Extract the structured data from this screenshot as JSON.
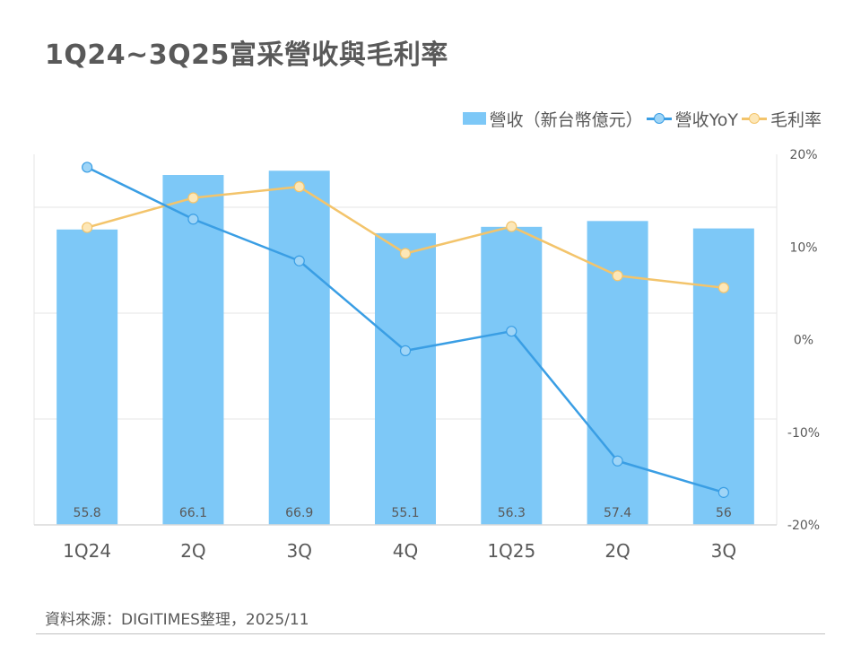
{
  "title": "1Q24~3Q25富采營收與毛利率",
  "source": "資料來源：DIGITIMES整理，2025/11",
  "legend": {
    "revenue": "營收（新台幣億元）",
    "yoy": "營收YoY",
    "margin": "毛利率"
  },
  "colors": {
    "bar": "#7dc8f7",
    "yoy_line": "#3a9ee4",
    "yoy_marker_fill": "#9fd5f7",
    "margin_line": "#f3c46b",
    "margin_marker_fill": "#fde7b7",
    "gridline": "#e6e6e6",
    "text": "#595959"
  },
  "chart_data": {
    "type": "bar",
    "title": "1Q24~3Q25富采營收與毛利率",
    "categories": [
      "1Q24",
      "2Q",
      "3Q",
      "4Q",
      "1Q25",
      "2Q",
      "3Q"
    ],
    "series": [
      {
        "name": "營收（新台幣億元）",
        "type": "bar",
        "axis": "left",
        "values": [
          55.8,
          66.1,
          66.9,
          55.1,
          56.3,
          57.4,
          56
        ],
        "labels": [
          "55.8",
          "66.1",
          "66.9",
          "55.1",
          "56.3",
          "57.4",
          "56"
        ]
      },
      {
        "name": "營收YoY",
        "type": "line",
        "axis": "right",
        "unit": "%",
        "values": [
          18.6,
          13.0,
          8.5,
          -1.2,
          0.9,
          -13.1,
          -16.5
        ]
      },
      {
        "name": "毛利率",
        "type": "line",
        "axis": "right",
        "unit": "%",
        "values": [
          12.1,
          15.3,
          16.5,
          9.3,
          12.2,
          6.9,
          5.6
        ]
      }
    ],
    "y_left": {
      "range": [
        0,
        70
      ],
      "ticks_shown": false
    },
    "y_right": {
      "range": [
        -20,
        20
      ],
      "ticks": [
        -20,
        -10,
        0,
        10,
        20
      ],
      "tick_labels": [
        "-20%",
        "-10%",
        "0%",
        "10%",
        "20%"
      ]
    },
    "grid": true,
    "legend_position": "top-right"
  }
}
